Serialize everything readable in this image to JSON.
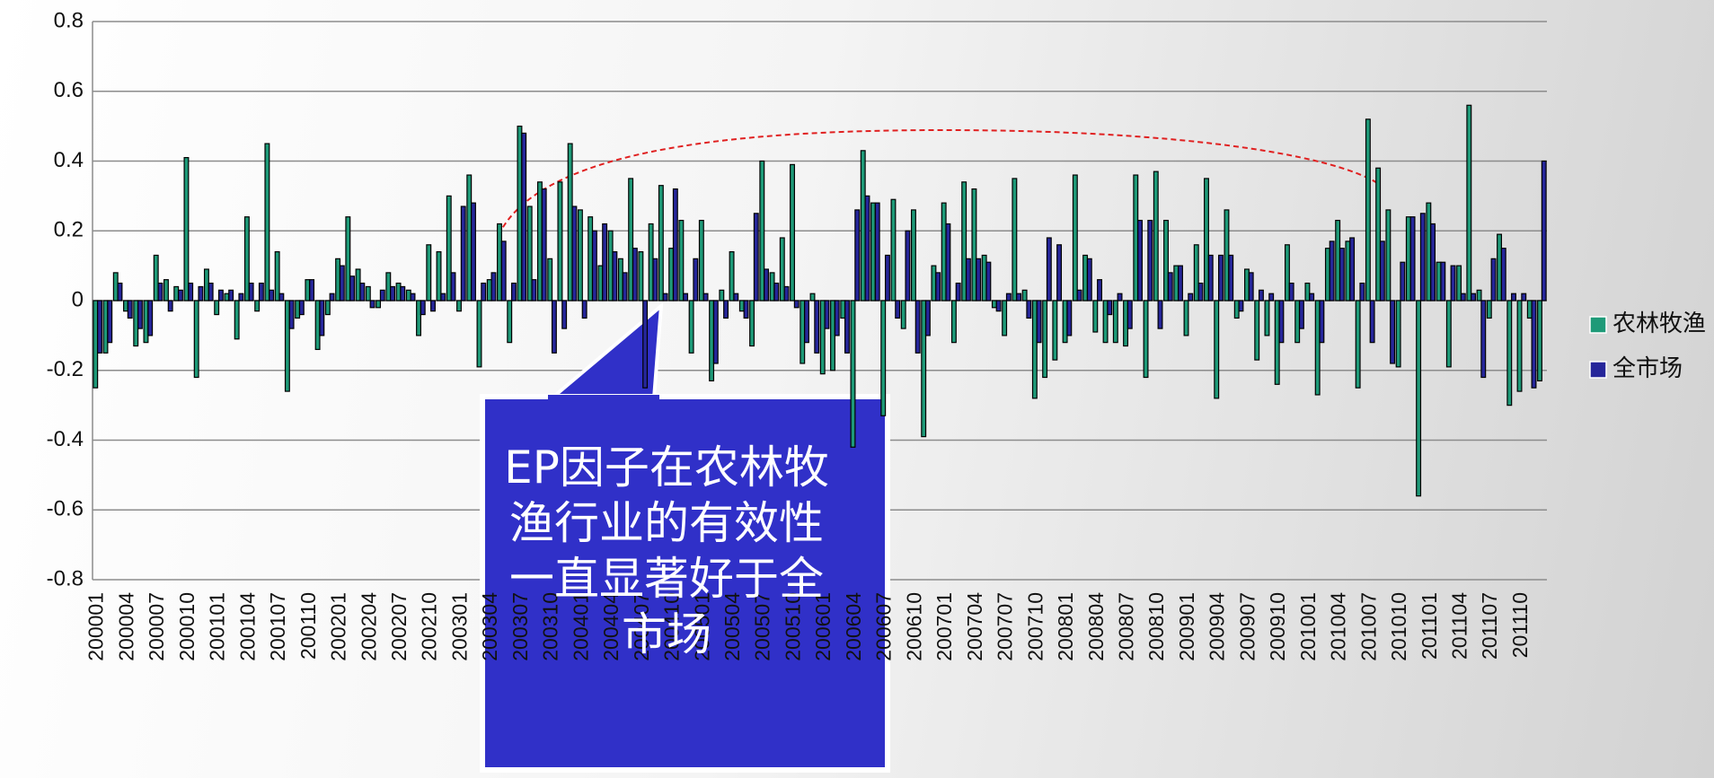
{
  "chart_data": {
    "type": "bar",
    "categories": [
      "200001",
      null,
      null,
      "200004",
      null,
      null,
      "200007",
      null,
      null,
      "200010",
      null,
      null,
      "200101",
      null,
      null,
      "200104",
      null,
      null,
      "200107",
      null,
      null,
      "200110",
      null,
      null,
      "200201",
      null,
      null,
      "200204",
      null,
      null,
      "200207",
      null,
      null,
      "200210",
      null,
      null,
      "200301",
      null,
      null,
      "200304",
      null,
      null,
      "200307",
      null,
      null,
      "200310",
      null,
      null,
      "200401",
      null,
      null,
      "200404",
      null,
      null,
      "200407",
      null,
      null,
      "200410",
      null,
      null,
      "200501",
      null,
      null,
      "200504",
      null,
      null,
      "200507",
      null,
      null,
      "200510",
      null,
      null,
      "200601",
      null,
      null,
      "200604",
      null,
      null,
      "200607",
      null,
      null,
      "200610",
      null,
      null,
      "200701",
      null,
      null,
      "200704",
      null,
      null,
      "200707",
      null,
      null,
      "200710",
      null,
      null,
      "200801",
      null,
      null,
      "200804",
      null,
      null,
      "200807",
      null,
      null,
      "200810",
      null,
      null,
      "200901",
      null,
      null,
      "200904",
      null,
      null,
      "200907",
      null,
      null,
      "200910",
      null,
      null,
      "201001",
      null,
      null,
      "201004",
      null,
      null,
      "201007",
      null,
      null,
      "201010",
      null,
      null,
      "201101",
      null,
      null,
      "201104",
      null,
      null,
      "201107",
      null,
      null,
      "201110",
      null,
      null
    ],
    "series": [
      {
        "name": "农林牧渔",
        "color": "#1e9a78",
        "values": [
          -0.25,
          -0.15,
          0.08,
          -0.03,
          -0.13,
          -0.12,
          0.13,
          0.06,
          0.04,
          0.41,
          -0.22,
          0.09,
          -0.04,
          0.02,
          -0.11,
          0.24,
          -0.03,
          0.45,
          0.14,
          -0.26,
          -0.05,
          0.06,
          -0.14,
          -0.04,
          0.12,
          0.24,
          0.09,
          0.04,
          -0.02,
          0.08,
          0.05,
          0.03,
          -0.1,
          0.16,
          0.14,
          0.3,
          -0.03,
          0.36,
          -0.19,
          0.06,
          0.22,
          -0.12,
          0.5,
          0.27,
          0.34,
          0.12,
          0.34,
          0.45,
          0.26,
          0.24,
          0.1,
          0.2,
          0.12,
          0.35,
          0.14,
          0.22,
          0.33,
          0.15,
          0.23,
          -0.15,
          0.23,
          -0.23,
          0.03,
          0.14,
          -0.03,
          -0.13,
          0.4,
          0.08,
          0.18,
          0.39,
          -0.18,
          0.02,
          -0.21,
          -0.2,
          -0.05,
          -0.42,
          0.43,
          0.28,
          -0.33,
          0.29,
          -0.08,
          0.26,
          -0.39,
          0.1,
          0.28,
          -0.12,
          0.34,
          0.32,
          0.13,
          -0.02,
          -0.1,
          0.35,
          0.03,
          -0.28,
          -0.22,
          -0.17,
          -0.12,
          0.36,
          0.13,
          -0.09,
          -0.12,
          -0.12,
          -0.13,
          0.36,
          -0.22,
          0.37,
          0.23,
          0.1,
          -0.1,
          0.16,
          0.35,
          -0.28,
          0.26,
          -0.05,
          0.09,
          -0.17,
          -0.1,
          -0.24,
          0.16,
          -0.12,
          0.05,
          -0.27,
          0.15,
          0.23,
          0.17,
          -0.25,
          0.52,
          0.38,
          0.26,
          -0.19,
          0.24,
          -0.56,
          0.28,
          0.11,
          -0.19,
          0.1,
          0.56,
          0.03,
          -0.05,
          0.19,
          -0.3,
          -0.26,
          -0.05,
          -0.23
        ]
      },
      {
        "name": "全市场",
        "color": "#26269a",
        "values": [
          -0.15,
          -0.12,
          0.05,
          -0.05,
          -0.08,
          -0.1,
          0.05,
          -0.03,
          0.03,
          0.05,
          0.04,
          0.05,
          0.03,
          0.03,
          0.02,
          0.05,
          0.05,
          0.03,
          0.02,
          -0.08,
          -0.04,
          0.06,
          -0.1,
          0.02,
          0.1,
          0.07,
          0.05,
          -0.02,
          0.03,
          0.04,
          0.04,
          0.02,
          -0.04,
          -0.03,
          0.02,
          0.08,
          0.27,
          0.28,
          0.05,
          0.08,
          0.17,
          0.05,
          0.48,
          0.06,
          0.32,
          -0.15,
          -0.08,
          0.27,
          -0.05,
          0.2,
          0.22,
          0.14,
          0.08,
          0.15,
          -0.25,
          0.12,
          0.02,
          0.32,
          0.02,
          0.12,
          0.02,
          -0.18,
          -0.05,
          0.02,
          -0.05,
          0.25,
          0.09,
          0.05,
          0.04,
          -0.02,
          -0.12,
          -0.15,
          -0.08,
          -0.1,
          -0.15,
          0.26,
          0.3,
          0.28,
          0.13,
          -0.05,
          0.2,
          -0.15,
          -0.1,
          0.08,
          0.22,
          0.05,
          0.12,
          0.12,
          0.11,
          -0.03,
          0.02,
          0.02,
          -0.05,
          -0.12,
          0.18,
          0.16,
          -0.1,
          0.03,
          0.12,
          0.06,
          -0.04,
          0.02,
          -0.08,
          0.23,
          0.23,
          -0.08,
          0.08,
          0.1,
          0.02,
          0.05,
          0.13,
          0.13,
          0.13,
          -0.03,
          0.08,
          0.03,
          0.02,
          -0.12,
          0.05,
          -0.08,
          0.02,
          -0.12,
          0.17,
          0.15,
          0.18,
          0.05,
          -0.12,
          0.17,
          -0.18,
          0.11,
          0.24,
          0.25,
          0.22,
          0.11,
          0.1,
          0.02,
          0.02,
          -0.22,
          0.12,
          0.15,
          0.02,
          0.02,
          -0.25,
          0.4
        ]
      }
    ],
    "ylim": [
      -0.8,
      0.8
    ],
    "yticks": [
      -0.8,
      -0.6,
      -0.4,
      -0.2,
      0,
      0.2,
      0.4,
      0.6,
      0.8
    ],
    "grid": true,
    "legend": "right",
    "annotation": "EP因子在农林牧渔行业的有效性一直显著好于全市场"
  }
}
